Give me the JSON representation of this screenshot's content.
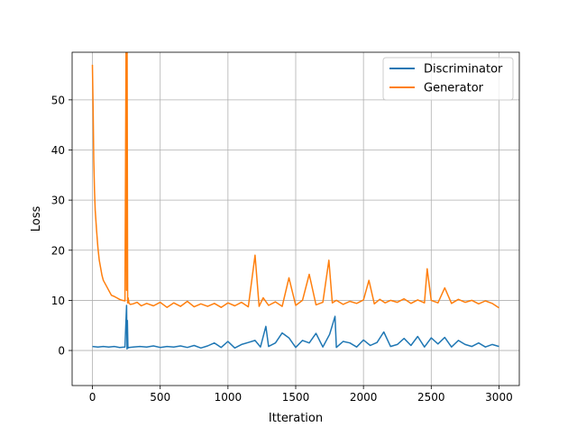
{
  "chart_data": {
    "type": "line",
    "title": "",
    "xlabel": "Itteration",
    "ylabel": "Loss",
    "xlim": [
      -150,
      3150
    ],
    "ylim": [
      -7,
      59.5
    ],
    "grid": true,
    "legend_position": "top-right",
    "x_ticks": [
      0,
      500,
      1000,
      1500,
      2000,
      2500,
      3000
    ],
    "y_ticks": [
      0,
      10,
      20,
      30,
      40,
      50
    ],
    "x_tick_labels": [
      "0",
      "500",
      "1000",
      "1500",
      "2000",
      "2500",
      "3000"
    ],
    "y_tick_labels": [
      "0",
      "10",
      "20",
      "30",
      "40",
      "50"
    ],
    "series": [
      {
        "name": "Discriminator",
        "color": "#1f77b4",
        "x": [
          0,
          40,
          80,
          120,
          160,
          200,
          240,
          252,
          255,
          258,
          262,
          270,
          300,
          350,
          400,
          450,
          500,
          550,
          600,
          650,
          700,
          750,
          800,
          850,
          900,
          950,
          1000,
          1050,
          1100,
          1150,
          1200,
          1240,
          1280,
          1300,
          1350,
          1400,
          1450,
          1500,
          1550,
          1600,
          1650,
          1700,
          1750,
          1790,
          1800,
          1850,
          1900,
          1950,
          2000,
          2050,
          2100,
          2150,
          2200,
          2250,
          2300,
          2350,
          2400,
          2450,
          2500,
          2550,
          2600,
          2650,
          2700,
          2750,
          2800,
          2850,
          2900,
          2950,
          3000
        ],
        "values": [
          0.8,
          0.7,
          0.8,
          0.7,
          0.8,
          0.6,
          0.7,
          9.0,
          0.3,
          6.0,
          0.5,
          0.6,
          0.7,
          0.8,
          0.7,
          0.9,
          0.6,
          0.8,
          0.7,
          0.9,
          0.6,
          1.0,
          0.5,
          0.9,
          1.5,
          0.6,
          1.8,
          0.5,
          1.2,
          1.6,
          2.0,
          0.7,
          4.8,
          0.8,
          1.5,
          3.5,
          2.5,
          0.6,
          2.0,
          1.5,
          3.4,
          0.7,
          3.2,
          6.8,
          0.6,
          1.8,
          1.5,
          0.7,
          2.1,
          1.0,
          1.6,
          3.7,
          0.8,
          1.2,
          2.4,
          1.0,
          2.8,
          0.7,
          2.5,
          1.3,
          2.6,
          0.7,
          2.0,
          1.2,
          0.8,
          1.5,
          0.7,
          1.2,
          0.8
        ]
      },
      {
        "name": "Generator",
        "color": "#ff7f0e",
        "x": [
          0,
          5,
          10,
          15,
          20,
          30,
          40,
          50,
          60,
          70,
          80,
          100,
          120,
          140,
          160,
          180,
          200,
          220,
          240,
          248,
          252,
          256,
          260,
          263,
          270,
          280,
          300,
          330,
          360,
          400,
          450,
          500,
          550,
          600,
          650,
          700,
          750,
          800,
          850,
          900,
          950,
          1000,
          1050,
          1100,
          1150,
          1200,
          1230,
          1260,
          1300,
          1350,
          1400,
          1450,
          1500,
          1550,
          1600,
          1650,
          1700,
          1745,
          1770,
          1800,
          1850,
          1900,
          1950,
          2000,
          2040,
          2080,
          2120,
          2160,
          2200,
          2250,
          2300,
          2350,
          2400,
          2450,
          2470,
          2500,
          2550,
          2600,
          2650,
          2700,
          2750,
          2800,
          2850,
          2900,
          2950,
          3000
        ],
        "values": [
          57,
          48,
          38,
          32,
          28,
          24,
          20.5,
          18,
          16.5,
          15,
          14,
          13,
          12,
          11,
          10.8,
          10.5,
          10.2,
          10,
          9.9,
          59.5,
          12,
          59.5,
          9.5,
          10.5,
          9.4,
          9.2,
          9.3,
          9.6,
          8.9,
          9.4,
          8.9,
          9.6,
          8.6,
          9.5,
          8.8,
          9.8,
          8.7,
          9.3,
          8.8,
          9.4,
          8.6,
          9.5,
          8.9,
          9.6,
          8.7,
          19.0,
          8.8,
          10.5,
          9.0,
          9.7,
          8.8,
          14.5,
          9.0,
          10.0,
          15.2,
          9.1,
          9.6,
          18.0,
          9.5,
          10.0,
          9.2,
          9.8,
          9.4,
          10.1,
          14.0,
          9.3,
          10.2,
          9.5,
          10.0,
          9.6,
          10.3,
          9.4,
          10.1,
          9.5,
          16.3,
          10.0,
          9.5,
          12.5,
          9.4,
          10.2,
          9.6,
          10.0,
          9.3,
          9.9,
          9.4,
          8.5
        ]
      }
    ]
  }
}
